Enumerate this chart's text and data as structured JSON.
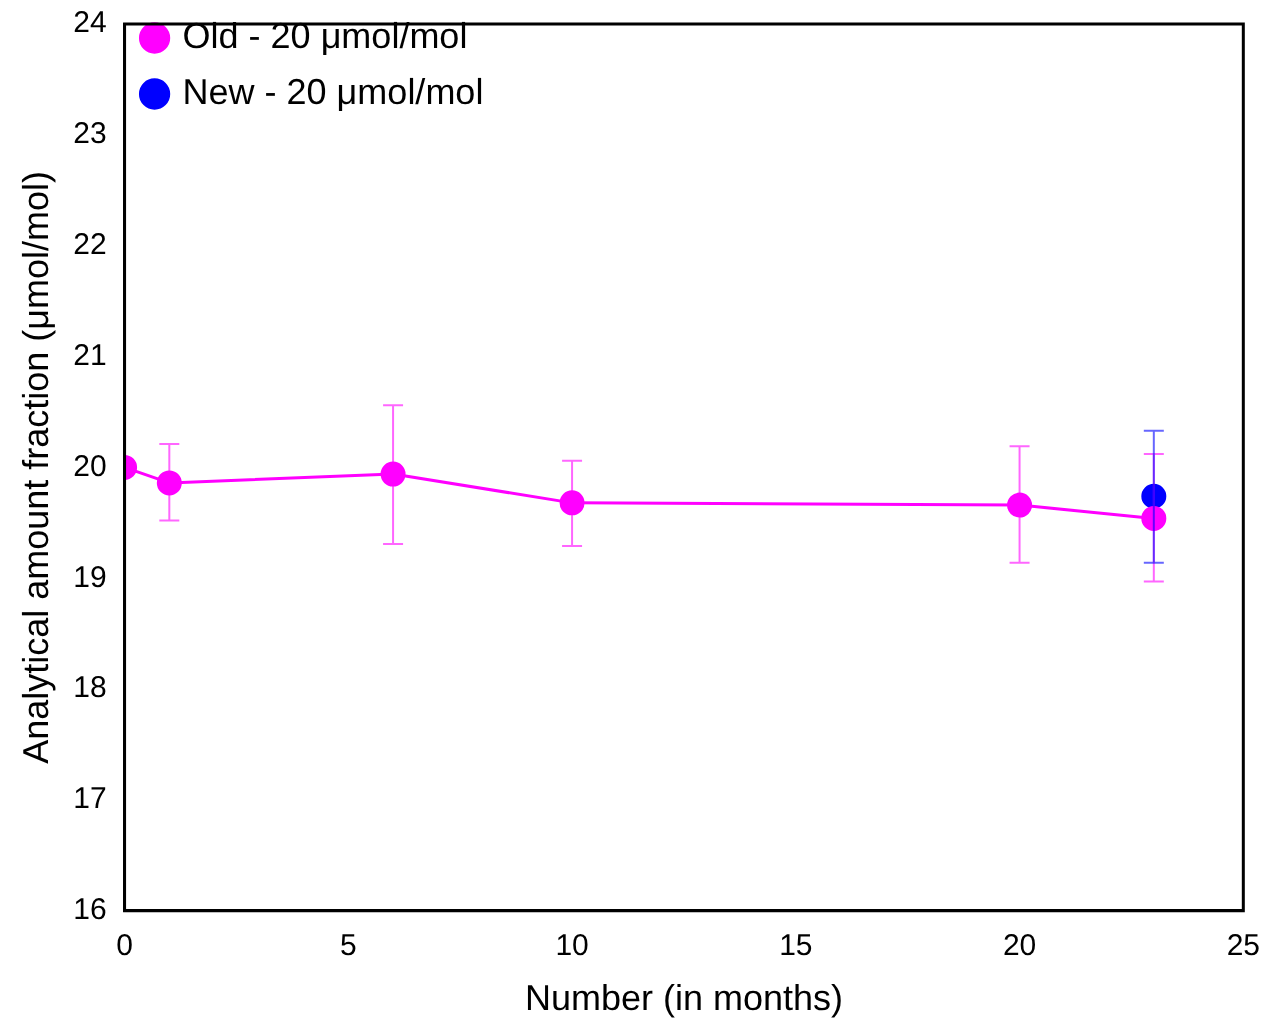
{
  "chart_data": {
    "type": "line",
    "xlabel": "Number (in months)",
    "ylabel": "Analytical amount fraction (μmol/mol)",
    "xlim": [
      0,
      25
    ],
    "xticks": [
      0,
      5,
      10,
      15,
      20,
      25
    ],
    "ylim": [
      16,
      24
    ],
    "yticks": [
      16,
      17,
      18,
      19,
      20,
      21,
      22,
      23,
      24
    ],
    "grid": false,
    "legend": "top left",
    "marker": "circle",
    "line_style": "solid",
    "series": [
      {
        "name": "Old - 20 μmol/mol",
        "color": "#ff00ff",
        "x": [
          0,
          1,
          6,
          10,
          20,
          23
        ],
        "values": [
          20.0,
          19.86,
          19.94,
          19.68,
          19.66,
          19.54
        ],
        "errors": [
          null,
          [
            19.52,
            20.21
          ],
          [
            19.31,
            20.56
          ],
          [
            19.29,
            20.06
          ],
          [
            19.14,
            20.19
          ],
          [
            18.97,
            20.12
          ]
        ]
      },
      {
        "name": "New - 20 μmol/mol",
        "color": "#0000ff",
        "x": [
          23
        ],
        "values": [
          19.74
        ],
        "errors": [
          [
            19.14,
            20.33
          ]
        ]
      }
    ]
  }
}
